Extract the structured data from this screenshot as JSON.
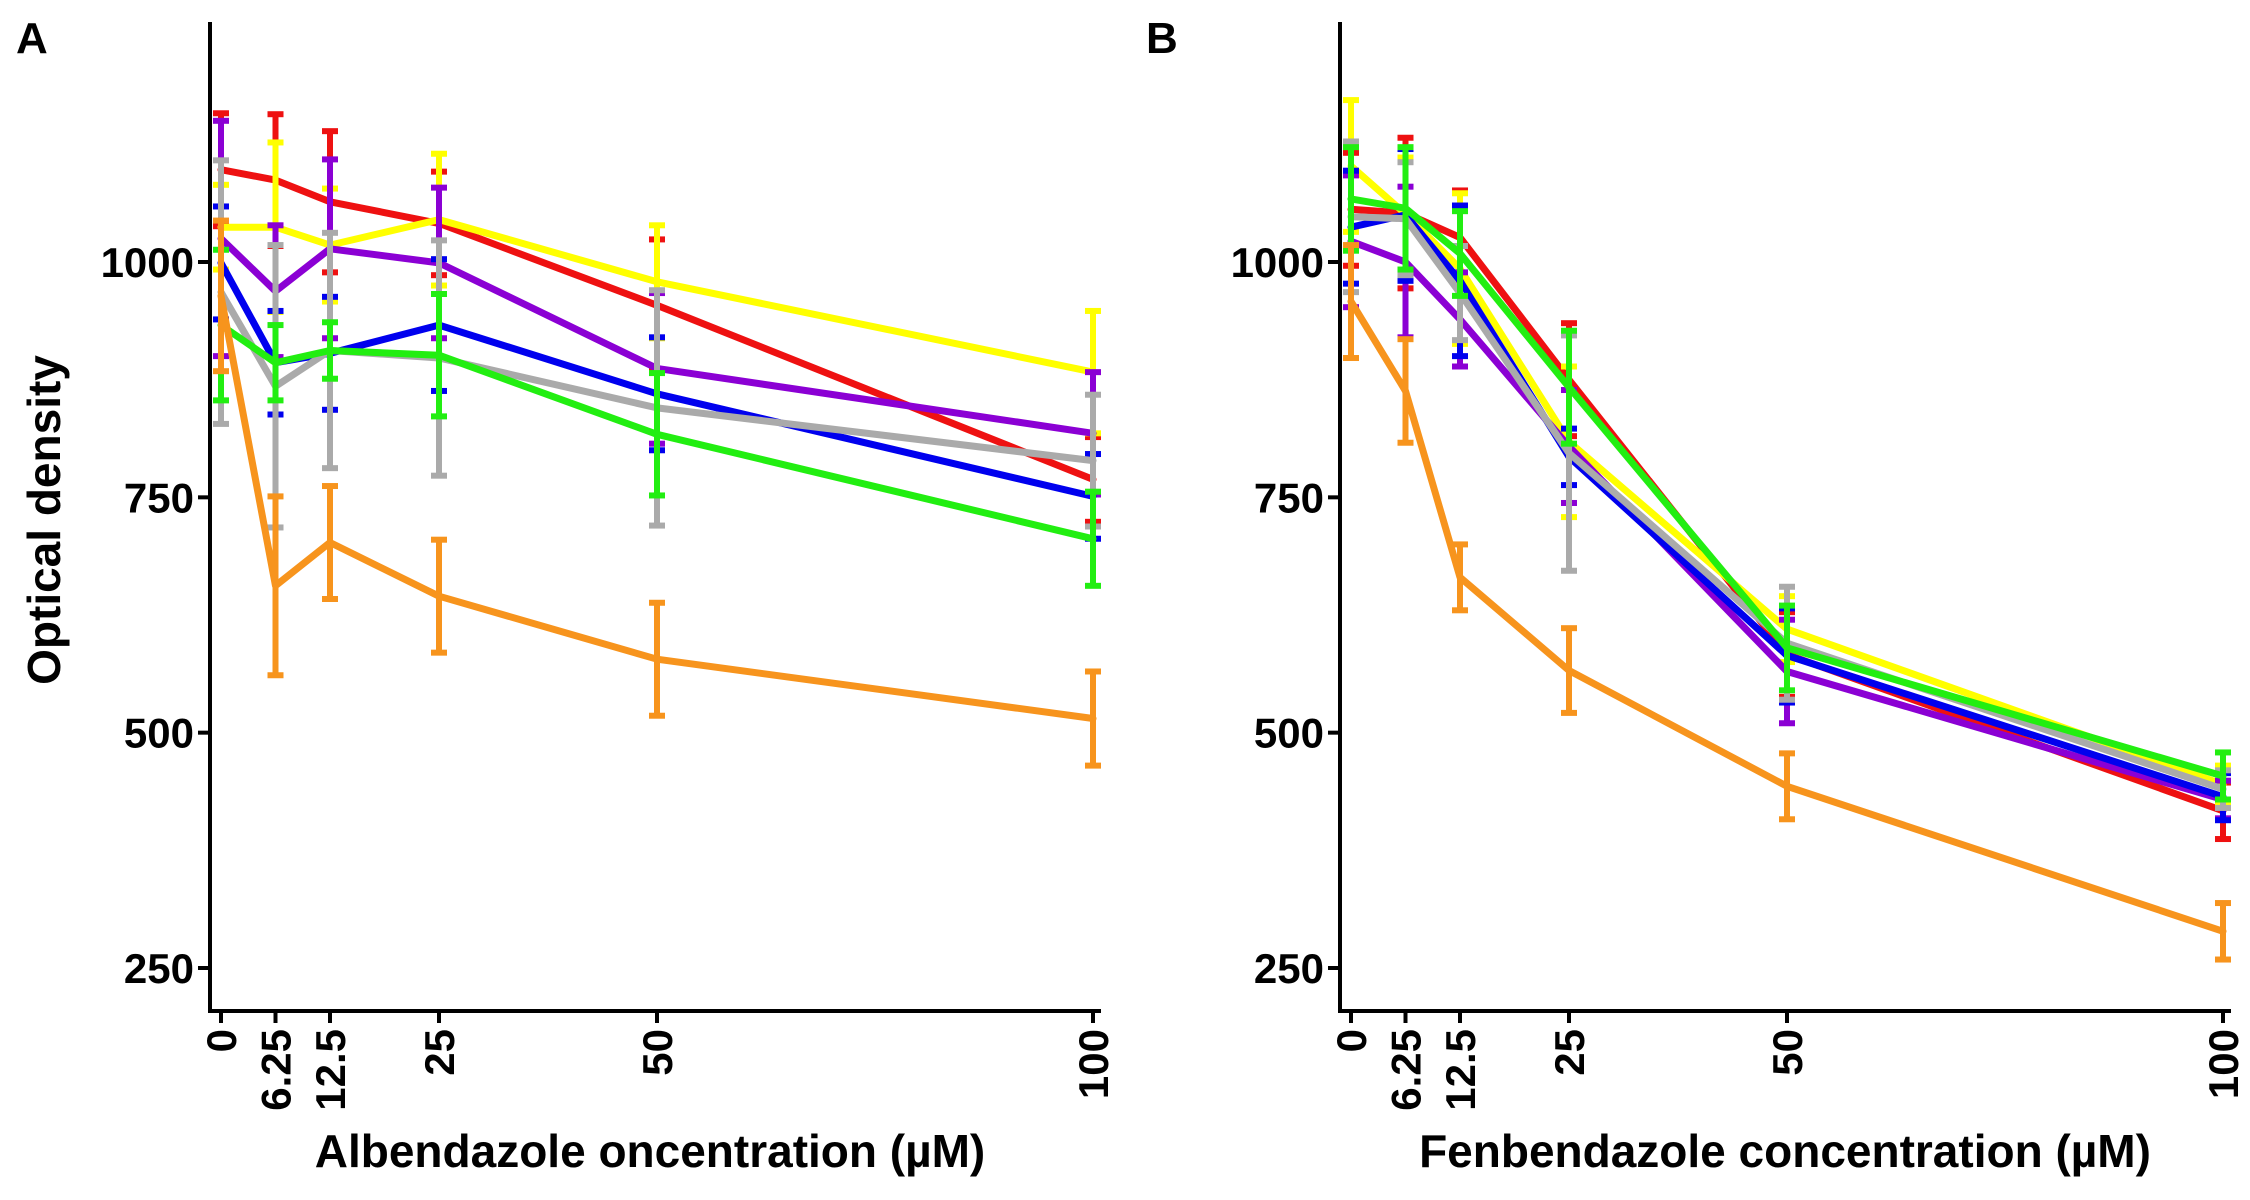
{
  "chart_data": [
    {
      "type": "line",
      "panel_label": "A",
      "xlabel": "Albendazole oncentration (µM)",
      "ylabel": "Optical density",
      "x": [
        0,
        6.25,
        12.5,
        25,
        50,
        100
      ],
      "x_tick_labels": [
        "0",
        "6.25",
        "12.5",
        "25",
        "50",
        "100"
      ],
      "y_ticks": [
        250,
        500,
        750,
        1000
      ],
      "y_tick_labels": [
        "250",
        "500",
        "750",
        "1000"
      ],
      "ylim": [
        195,
        1245
      ],
      "series": [
        {
          "color": "#ee1111",
          "values": [
            1098,
            1087,
            1064,
            1041,
            954,
            769
          ],
          "errors": [
            60,
            70,
            75,
            55,
            70,
            45
          ]
        },
        {
          "color": "#ffff00",
          "values": [
            1037,
            1037,
            1018,
            1045,
            979,
            883
          ],
          "errors": [
            45,
            90,
            60,
            70,
            60,
            65
          ]
        },
        {
          "color": "#8b00d4",
          "values": [
            1025,
            969,
            1014,
            999,
            887,
            818
          ],
          "errors": [
            125,
            70,
            95,
            80,
            80,
            65
          ]
        },
        {
          "color": "#0000ee",
          "values": [
            999,
            893,
            903,
            933,
            860,
            751
          ],
          "errors": [
            60,
            55,
            60,
            70,
            60,
            45
          ]
        },
        {
          "color": "#aaaaaa",
          "values": [
            968,
            868,
            906,
            898,
            845,
            789
          ],
          "errors": [
            140,
            150,
            125,
            125,
            125,
            70
          ]
        },
        {
          "color": "#22ee11",
          "values": [
            933,
            893,
            906,
            901,
            817,
            706
          ],
          "errors": [
            80,
            40,
            30,
            65,
            65,
            50
          ]
        },
        {
          "color": "#f7941d",
          "values": [
            964,
            656,
            702,
            645,
            578,
            515
          ],
          "errors": [
            80,
            95,
            60,
            60,
            60,
            50
          ]
        }
      ]
    },
    {
      "type": "line",
      "panel_label": "B",
      "xlabel": "Fenbendazole concentration (µM)",
      "ylabel": "",
      "x": [
        0,
        6.25,
        12.5,
        25,
        50,
        100
      ],
      "x_tick_labels": [
        "0",
        "6.25",
        "12.5",
        "25",
        "50",
        "100"
      ],
      "y_ticks": [
        250,
        500,
        750,
        1000
      ],
      "y_tick_labels": [
        "250",
        "500",
        "750",
        "1000"
      ],
      "ylim": [
        195,
        1245
      ],
      "series": [
        {
          "color": "#ee1111",
          "values": [
            1056,
            1052,
            1026,
            875,
            583,
            417
          ],
          "errors": [
            60,
            80,
            50,
            60,
            45,
            30
          ]
        },
        {
          "color": "#ffff00",
          "values": [
            1102,
            1051,
            993,
            809,
            610,
            445
          ],
          "errors": [
            70,
            60,
            80,
            80,
            35,
            20
          ]
        },
        {
          "color": "#8b00d4",
          "values": [
            1022,
            1000,
            939,
            804,
            565,
            429
          ],
          "errors": [
            70,
            80,
            50,
            60,
            55,
            20
          ]
        },
        {
          "color": "#0000ee",
          "values": [
            1037,
            1050,
            980,
            793,
            582,
            432
          ],
          "errors": [
            60,
            70,
            80,
            30,
            50,
            25
          ]
        },
        {
          "color": "#aaaaaa",
          "values": [
            1048,
            1046,
            967,
            797,
            595,
            440
          ],
          "errors": [
            80,
            60,
            50,
            125,
            60,
            20
          ]
        },
        {
          "color": "#22ee11",
          "values": [
            1067,
            1057,
            1009,
            867,
            590,
            454
          ],
          "errors": [
            55,
            65,
            45,
            60,
            45,
            25
          ]
        },
        {
          "color": "#f7941d",
          "values": [
            958,
            863,
            665,
            566,
            443,
            289
          ],
          "errors": [
            60,
            55,
            35,
            45,
            35,
            30
          ]
        }
      ]
    }
  ]
}
